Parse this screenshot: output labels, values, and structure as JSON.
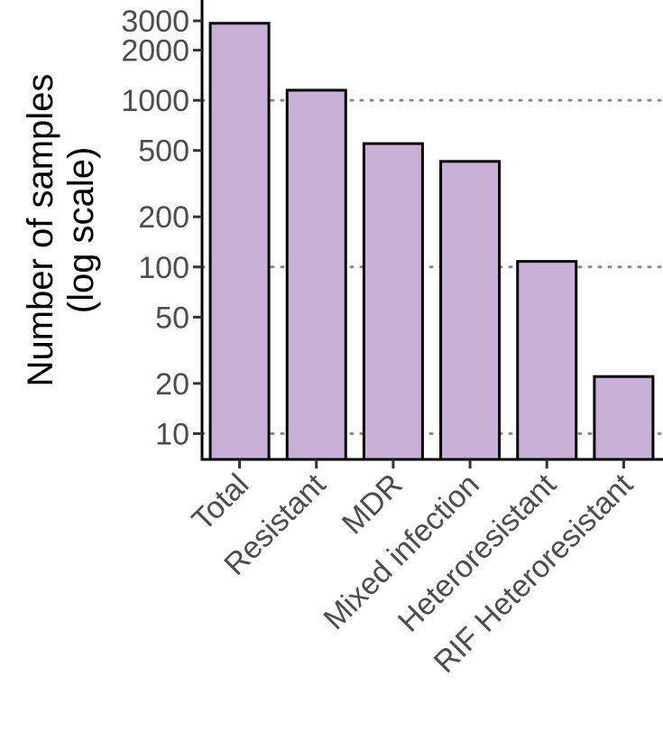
{
  "chart_data": {
    "type": "bar",
    "scale": "log10",
    "ylabel_lines": [
      "Number of samples",
      "(log scale)"
    ],
    "xlabel": "",
    "title": "",
    "categories": [
      "Total",
      "Resistant",
      "MDR",
      "Mixed infection",
      "Heteroresistant",
      "RIF Heteroresistant"
    ],
    "values": [
      2900,
      1150,
      550,
      430,
      108,
      22
    ],
    "ylim": [
      7,
      4000
    ],
    "y_ticks": [
      {
        "value": 10,
        "label": "10"
      },
      {
        "value": 20,
        "label": "20"
      },
      {
        "value": 50,
        "label": "50"
      },
      {
        "value": 100,
        "label": "100"
      },
      {
        "value": 200,
        "label": "200"
      },
      {
        "value": 500,
        "label": "500"
      },
      {
        "value": 1000,
        "label": "1000"
      },
      {
        "value": 2000,
        "label": "2000"
      },
      {
        "value": 3000,
        "label": "3000"
      }
    ],
    "gridlines": [
      10,
      100,
      1000
    ],
    "grid": "dotted horizontal at 10, 100, 1000",
    "bar_color": "#c8b0d6",
    "bar_edge_color": "#000000",
    "grid_color": "#8a8a8a"
  }
}
